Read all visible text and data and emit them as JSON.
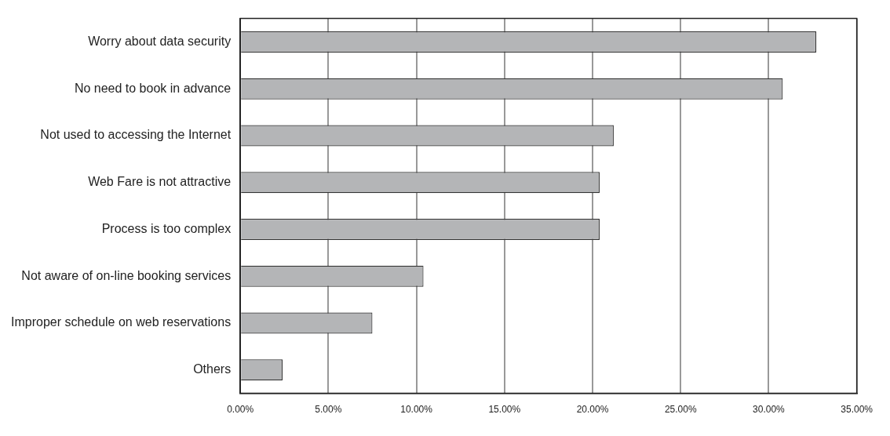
{
  "chart_data": {
    "type": "bar",
    "orientation": "horizontal",
    "categories": [
      "Worry about data security",
      "No need to book in advance",
      "Not used to accessing the Internet",
      "Web Fare is not attractive",
      "Process is too complex",
      "Not aware of on-line booking services",
      "Improper schedule on web reservations",
      "Others"
    ],
    "values": [
      32.7,
      30.8,
      21.2,
      20.4,
      20.4,
      10.4,
      7.5,
      2.4
    ],
    "color": "#b4b5b7",
    "xlim": [
      0,
      35
    ],
    "xticks": [
      {
        "value": 0,
        "label": "0.00%"
      },
      {
        "value": 5,
        "label": "5.00%"
      },
      {
        "value": 10,
        "label": "10.00%"
      },
      {
        "value": 15,
        "label": "15.00%"
      },
      {
        "value": 20,
        "label": "20.00%"
      },
      {
        "value": 25,
        "label": "25.00%"
      },
      {
        "value": 30,
        "label": "30.00%"
      },
      {
        "value": 35,
        "label": "35.00%"
      }
    ],
    "grid": "x",
    "legend": false
  }
}
